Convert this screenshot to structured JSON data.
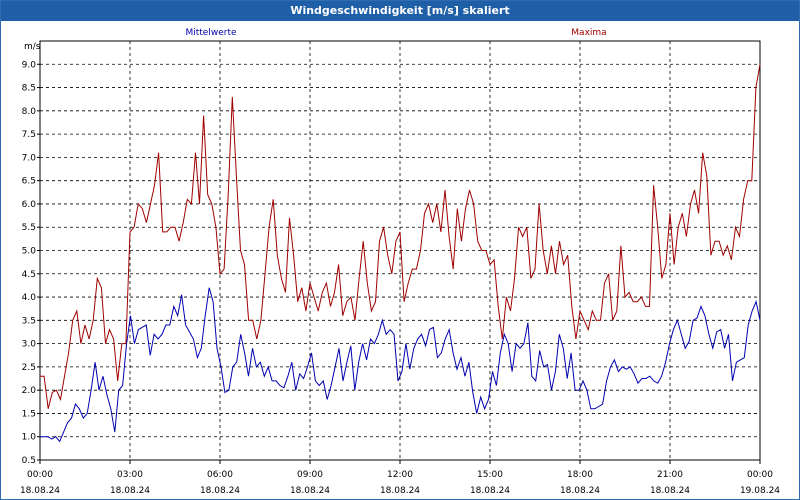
{
  "window": {
    "title": "Windgeschwindigkeit [m/s] skaliert"
  },
  "chart_data": {
    "type": "line",
    "title": "Windgeschwindigkeit [m/s] skaliert",
    "ylabel": "m/s",
    "ylim": [
      0.5,
      9.5
    ],
    "yticks": [
      "0.5",
      "1.0",
      "1.5",
      "2.0",
      "2.5",
      "3.0",
      "3.5",
      "4.0",
      "4.5",
      "5.0",
      "5.5",
      "6.0",
      "6.5",
      "7.0",
      "7.5",
      "8.0",
      "8.5",
      "9.0"
    ],
    "xlim": [
      0,
      24
    ],
    "xticks": [
      {
        "time": "00:00",
        "date": "18.08.24"
      },
      {
        "time": "03:00",
        "date": "18.08.24"
      },
      {
        "time": "06:00",
        "date": "18.08.24"
      },
      {
        "time": "09:00",
        "date": "18.08.24"
      },
      {
        "time": "12:00",
        "date": "18.08.24"
      },
      {
        "time": "15:00",
        "date": "18.08.24"
      },
      {
        "time": "18:00",
        "date": "18.08.24"
      },
      {
        "time": "21:00",
        "date": "18.08.24"
      },
      {
        "time": "00:00",
        "date": "19.08.24"
      }
    ],
    "grid": true,
    "colors": {
      "mittel": "#0000b0",
      "maxima": "#a00000"
    },
    "series": [
      {
        "name": "Mittelwerte",
        "values": [
          1.0,
          1.0,
          1.0,
          0.95,
          1.0,
          0.9,
          1.1,
          1.3,
          1.4,
          1.7,
          1.6,
          1.4,
          1.5,
          2.0,
          2.6,
          2.0,
          2.3,
          1.9,
          1.6,
          1.1,
          2.0,
          2.1,
          3.0,
          3.6,
          3.0,
          3.3,
          3.35,
          3.4,
          2.75,
          3.2,
          3.1,
          3.2,
          3.4,
          3.4,
          3.8,
          3.6,
          4.05,
          3.4,
          3.25,
          3.1,
          2.7,
          2.9,
          3.6,
          4.2,
          3.9,
          2.9,
          2.5,
          1.95,
          2.0,
          2.5,
          2.6,
          3.2,
          2.8,
          2.3,
          2.9,
          2.5,
          2.6,
          2.3,
          2.5,
          2.2,
          2.2,
          2.1,
          2.05,
          2.3,
          2.6,
          2.0,
          2.35,
          2.25,
          2.5,
          2.8,
          2.2,
          2.1,
          2.2,
          1.8,
          2.1,
          2.5,
          2.9,
          2.2,
          2.6,
          2.95,
          2.0,
          2.6,
          3.0,
          2.65,
          3.1,
          3.0,
          3.2,
          3.5,
          3.2,
          3.3,
          3.2,
          2.2,
          2.4,
          3.0,
          2.45,
          2.9,
          3.1,
          3.2,
          2.95,
          3.3,
          3.35,
          2.7,
          2.8,
          3.1,
          3.3,
          2.8,
          2.45,
          2.7,
          2.3,
          2.6,
          1.95,
          1.5,
          1.85,
          1.6,
          1.8,
          2.4,
          2.1,
          2.8,
          3.2,
          3.0,
          2.4,
          3.0,
          2.9,
          3.0,
          3.45,
          2.3,
          2.2,
          2.85,
          2.5,
          2.55,
          2.0,
          2.4,
          3.2,
          2.9,
          2.25,
          2.8,
          2.0,
          2.0,
          2.2,
          2.0,
          1.6,
          1.6,
          1.65,
          1.7,
          2.2,
          2.5,
          2.65,
          2.4,
          2.5,
          2.45,
          2.5,
          2.35,
          2.15,
          2.25,
          2.25,
          2.3,
          2.2,
          2.15,
          2.3,
          2.6,
          3.0,
          3.3,
          3.5,
          3.2,
          2.9,
          3.05,
          3.5,
          3.55,
          3.8,
          3.6,
          3.2,
          2.9,
          3.25,
          3.3,
          2.9,
          3.2,
          2.2,
          2.6,
          2.65,
          2.7,
          3.4,
          3.7,
          3.9,
          3.5
        ]
      },
      {
        "name": "Maxima",
        "values": [
          2.3,
          2.3,
          1.6,
          1.95,
          2.0,
          1.8,
          2.3,
          2.8,
          3.5,
          3.7,
          3.0,
          3.4,
          3.1,
          3.5,
          4.4,
          4.2,
          3.0,
          3.3,
          3.1,
          2.2,
          3.0,
          3.0,
          5.4,
          5.5,
          6.0,
          5.9,
          5.6,
          6.0,
          6.4,
          7.1,
          5.4,
          5.4,
          5.5,
          5.5,
          5.2,
          5.6,
          6.1,
          6.0,
          7.1,
          6.0,
          7.9,
          6.2,
          6.0,
          5.5,
          4.5,
          4.6,
          6.2,
          8.3,
          6.6,
          5.0,
          4.7,
          3.5,
          3.5,
          3.1,
          3.5,
          4.5,
          5.5,
          6.1,
          4.9,
          4.4,
          4.1,
          5.7,
          4.9,
          3.9,
          4.2,
          3.7,
          4.3,
          4.0,
          3.7,
          4.1,
          4.3,
          3.8,
          4.1,
          4.7,
          3.6,
          3.9,
          4.0,
          3.5,
          4.4,
          5.2,
          4.3,
          3.7,
          3.9,
          5.2,
          5.5,
          4.9,
          4.5,
          5.2,
          5.4,
          3.9,
          4.3,
          4.6,
          4.6,
          5.0,
          5.8,
          6.0,
          5.6,
          6.0,
          5.4,
          6.3,
          5.3,
          4.6,
          5.9,
          5.2,
          5.9,
          6.3,
          6.0,
          5.2,
          5.0,
          5.0,
          4.7,
          4.8,
          3.8,
          3.1,
          4.0,
          3.7,
          4.4,
          5.5,
          5.3,
          5.5,
          4.4,
          4.6,
          6.0,
          5.0,
          4.5,
          5.1,
          4.5,
          5.2,
          4.7,
          4.9,
          3.8,
          3.1,
          3.7,
          3.5,
          3.3,
          3.7,
          3.5,
          3.5,
          4.3,
          4.5,
          3.5,
          3.7,
          5.1,
          4.0,
          4.1,
          3.9,
          3.9,
          4.0,
          3.8,
          3.8,
          6.4,
          5.5,
          4.4,
          4.7,
          5.8,
          4.7,
          5.5,
          5.8,
          5.3,
          6.0,
          6.3,
          5.8,
          7.1,
          6.6,
          4.9,
          5.2,
          5.2,
          4.9,
          5.1,
          4.8,
          5.5,
          5.3,
          6.1,
          6.5,
          6.5,
          8.5,
          9.0
        ]
      }
    ]
  }
}
